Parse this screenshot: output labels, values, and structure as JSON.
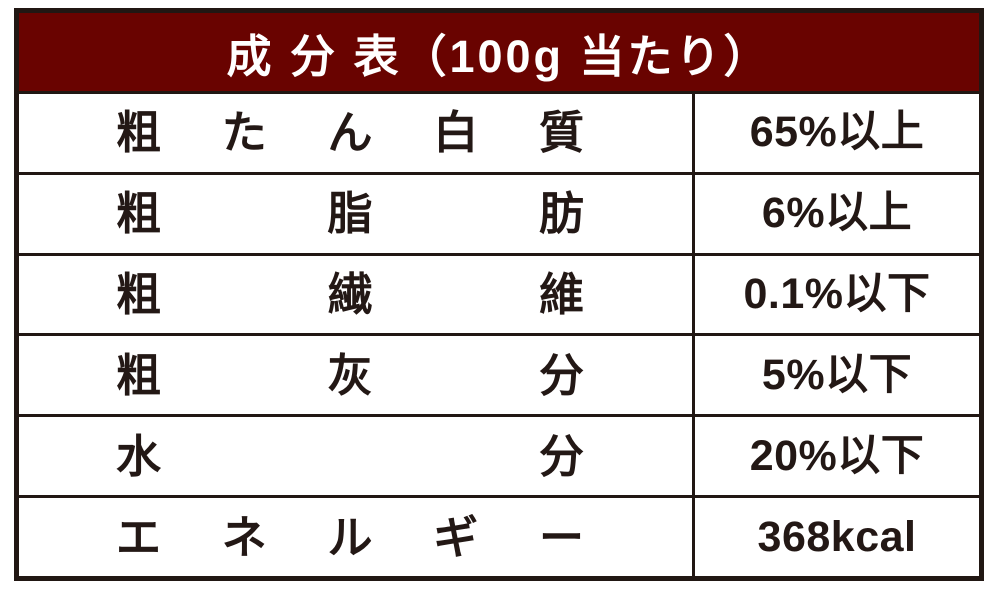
{
  "table": {
    "title": "成 分 表（100g 当たり）",
    "rows": [
      {
        "label": "粗たん白質",
        "value": "65%以上"
      },
      {
        "label": "粗脂肪",
        "value": "6%以上"
      },
      {
        "label": "粗繊維",
        "value": "0.1%以下"
      },
      {
        "label": "粗灰分",
        "value": "5%以下"
      },
      {
        "label": "水分",
        "value": "20%以下"
      },
      {
        "label": "エネルギー",
        "value": "368kcal"
      }
    ],
    "colors": {
      "header_background": "#690300",
      "header_text": "#ffffff",
      "border": "#211713",
      "body_text": "#231815",
      "row_background": "#ffffff"
    }
  }
}
